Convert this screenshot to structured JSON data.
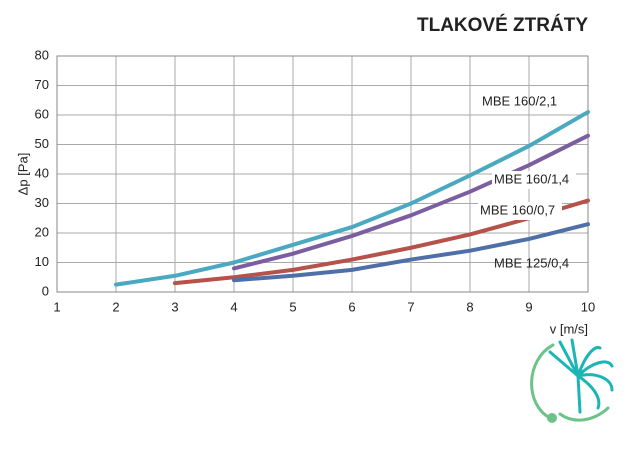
{
  "chart_data": {
    "type": "line",
    "title": "TLAKOVÉ ZTRÁTY",
    "xlabel": "v [m/s]",
    "ylabel": "Δp [Pa]",
    "x": [
      1,
      2,
      3,
      4,
      5,
      6,
      7,
      8,
      9,
      10
    ],
    "series": [
      {
        "name": "MBE  160/2,1",
        "color": "#4aa8c0",
        "values": [
          null,
          2.5,
          5.5,
          10,
          16,
          22,
          30,
          39.5,
          49.5,
          61
        ]
      },
      {
        "name": "MBE 160/1,4",
        "color": "#7b5ea0",
        "values": [
          null,
          null,
          null,
          8,
          13,
          19,
          26,
          34,
          43,
          53
        ]
      },
      {
        "name": "MBE 160/0,7",
        "color": "#b5524a",
        "values": [
          null,
          null,
          3,
          5,
          7.5,
          11,
          15,
          19.5,
          25,
          31
        ]
      },
      {
        "name": "MBE 125/0,4",
        "color": "#4f6fa8",
        "values": [
          null,
          null,
          null,
          4,
          5.5,
          7.5,
          11,
          14,
          18,
          23
        ]
      }
    ],
    "xlim": [
      1,
      10
    ],
    "xticks": [
      1,
      2,
      3,
      4,
      5,
      6,
      7,
      8,
      9,
      10
    ],
    "ylim": [
      0,
      80
    ],
    "yticks": [
      0,
      10,
      20,
      30,
      40,
      50,
      60,
      70,
      80
    ],
    "grid": true
  }
}
